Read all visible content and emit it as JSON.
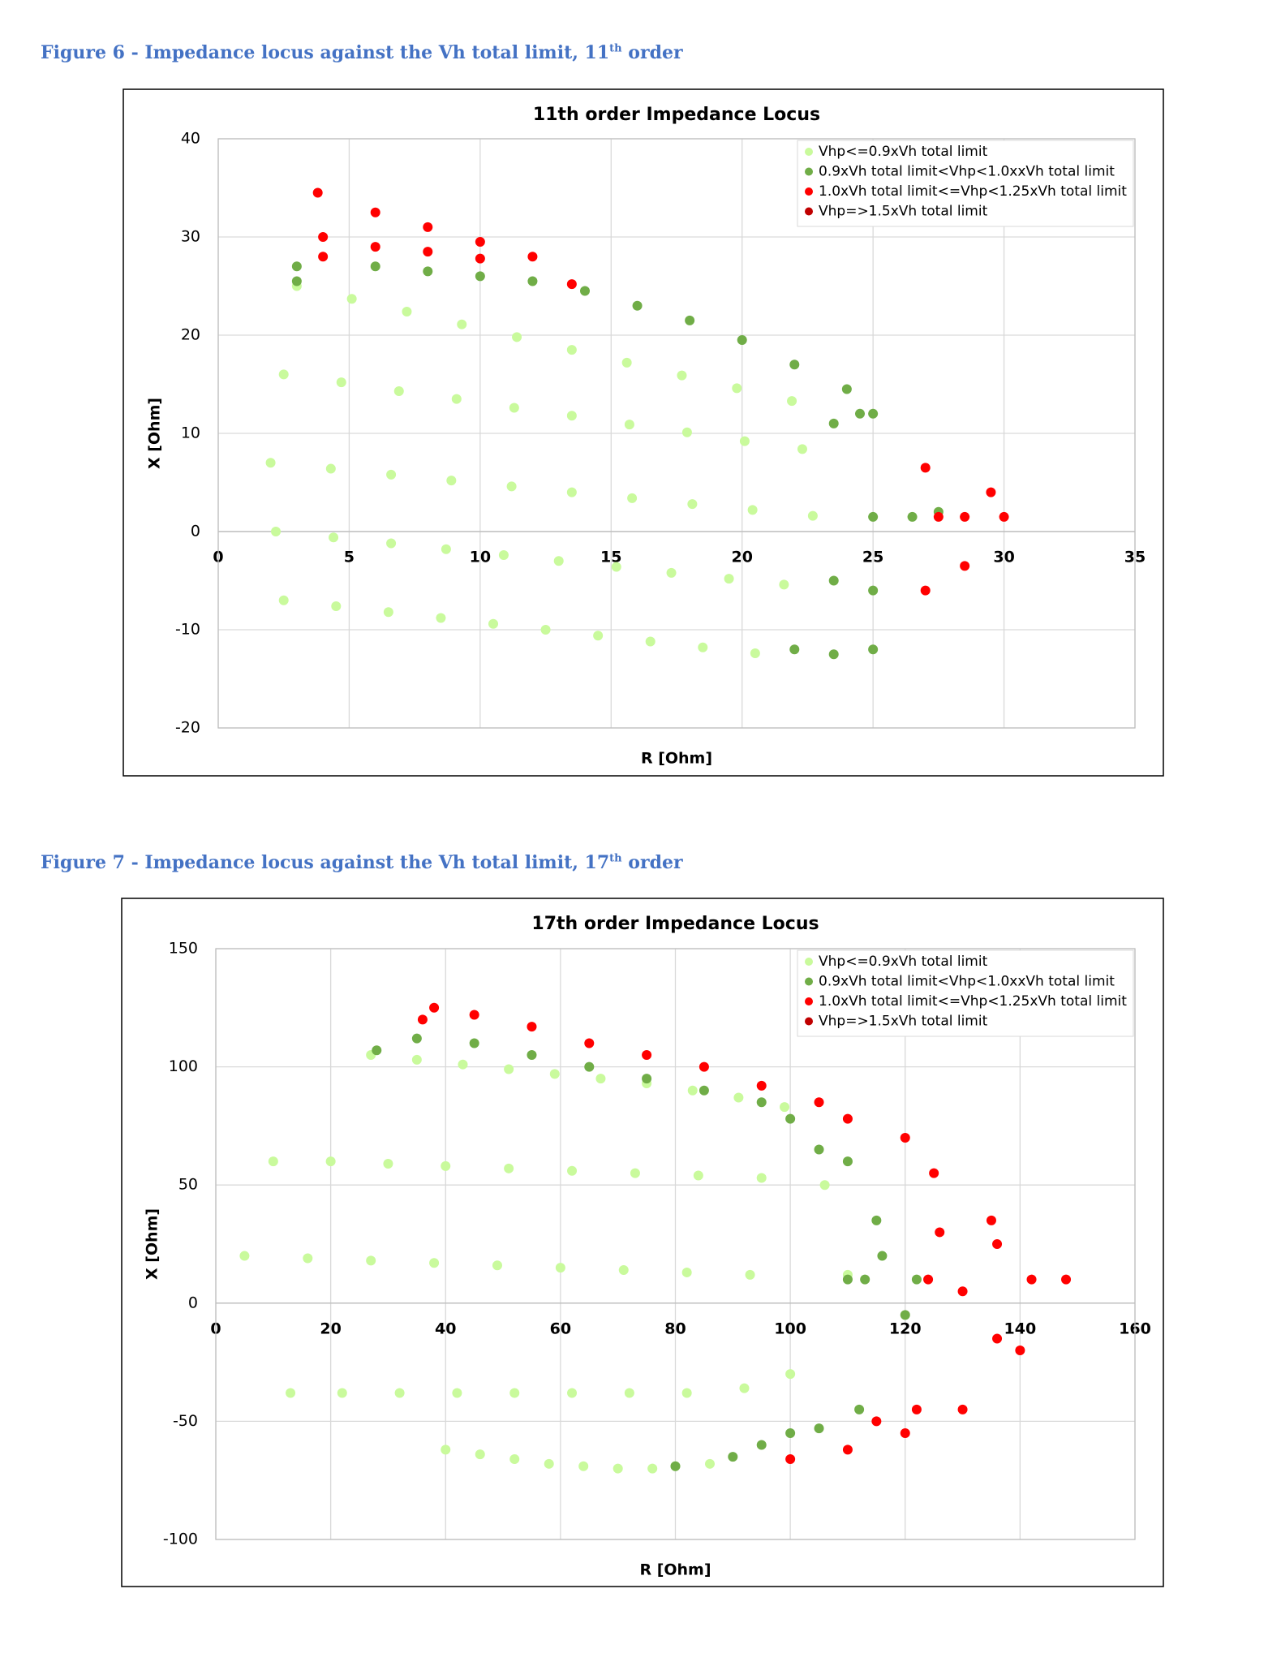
{
  "captions": [
    {
      "text": "Figure 6 - Impedance locus against the Vh total limit, 11",
      "sup": "th",
      "tail": " order"
    },
    {
      "text": "Figure 7 - Impedance locus against the Vh total limit, 17",
      "sup": "th",
      "tail": " order"
    }
  ],
  "chart_data": [
    {
      "type": "scatter",
      "title": "11th order Impedance Locus",
      "xlabel": "R [Ohm]",
      "ylabel": "X [Ohm]",
      "xlim": [
        0,
        35
      ],
      "xticks": [
        0,
        5,
        10,
        15,
        20,
        25,
        30,
        35
      ],
      "ylim": [
        -20,
        40
      ],
      "yticks": [
        -20,
        -10,
        0,
        10,
        20,
        30,
        40
      ],
      "grid": true,
      "legend": "upper right",
      "series": [
        {
          "name": "Vhp<=0.9xVh total limit",
          "color": "#c9fa9c",
          "x": [
            3,
            2.5,
            2,
            2.2,
            2.5,
            5.1,
            4.7,
            4.3,
            4.4,
            4.5,
            7.2,
            6.9,
            6.6,
            6.6,
            6.5,
            9.3,
            9.1,
            8.9,
            8.7,
            8.5,
            11.4,
            11.3,
            11.2,
            10.9,
            10.5,
            13.5,
            13.5,
            13.5,
            13,
            12.5,
            15.6,
            15.7,
            15.8,
            15.2,
            14.5,
            17.7,
            17.9,
            18.1,
            17.3,
            16.5,
            19.8,
            20.1,
            20.4,
            19.5,
            18.5,
            21.9,
            22.3,
            22.7,
            21.6,
            20.5
          ],
          "y": [
            25,
            16,
            7,
            0,
            -7,
            23.7,
            15.2,
            6.4,
            -0.6,
            -7.6,
            22.4,
            14.3,
            5.8,
            -1.2,
            -8.2,
            21.1,
            13.5,
            5.2,
            -1.8,
            -8.8,
            19.8,
            12.6,
            4.6,
            -2.4,
            -9.4,
            18.5,
            11.8,
            4,
            -3,
            -10,
            17.2,
            10.9,
            3.4,
            -3.6,
            -10.6,
            15.9,
            10.1,
            2.8,
            -4.2,
            -11.2,
            14.6,
            9.2,
            2.2,
            -4.8,
            -11.8,
            13.3,
            8.4,
            1.6,
            -5.4,
            -12.4
          ]
        },
        {
          "name": "0.9xVh total limit<Vhp<1.0xxVh total limit",
          "color": "#70ad47",
          "x": [
            3,
            3,
            6,
            8,
            10,
            12,
            14,
            16,
            18,
            20,
            22,
            24,
            25,
            23.5,
            25,
            23.5,
            22,
            24.5,
            26.5,
            25,
            23.5,
            27.5,
            25
          ],
          "y": [
            27,
            25.5,
            27,
            26.5,
            26,
            25.5,
            24.5,
            23,
            21.5,
            19.5,
            17,
            14.5,
            12,
            11,
            1.5,
            -5,
            -12,
            12,
            1.5,
            -6,
            -12.5,
            2,
            -12
          ]
        },
        {
          "name": "1.0xVh total limit<=Vhp<1.25xVh total limit",
          "color": "#ff0000",
          "x": [
            3.8,
            4,
            4,
            6,
            6,
            8,
            8,
            10,
            10,
            12,
            13.5,
            27,
            28.5,
            27,
            29.5,
            30,
            28.5,
            27.5
          ],
          "y": [
            34.5,
            30,
            28,
            32.5,
            29,
            31,
            28.5,
            29.5,
            27.8,
            28,
            25.2,
            6.5,
            1.5,
            -6,
            4,
            1.5,
            -3.5,
            1.5
          ]
        },
        {
          "name": "Vhp=>1.5xVh total limit",
          "color": "#c00000",
          "x": [],
          "y": []
        }
      ]
    },
    {
      "type": "scatter",
      "title": "17th order Impedance Locus",
      "xlabel": "R [Ohm]",
      "ylabel": "X [Ohm]",
      "xlim": [
        0,
        160
      ],
      "xticks": [
        0,
        20,
        40,
        60,
        80,
        100,
        120,
        140,
        160
      ],
      "ylim": [
        -100,
        150
      ],
      "yticks": [
        -100,
        -50,
        0,
        50,
        100,
        150
      ],
      "grid": true,
      "legend": "upper right",
      "series": [
        {
          "name": "Vhp<=0.9xVh total limit",
          "color": "#c9fa9c",
          "x": [
            27,
            10,
            5,
            13,
            40,
            35,
            20,
            16,
            22,
            46,
            43,
            30,
            27,
            32,
            52,
            51,
            40,
            38,
            42,
            58,
            59,
            51,
            49,
            52,
            64,
            67,
            62,
            60,
            62,
            70,
            75,
            73,
            71,
            72,
            76,
            83,
            84,
            82,
            82,
            80,
            91,
            95,
            93,
            92,
            86,
            99,
            106,
            110,
            100
          ],
          "y": [
            105,
            60,
            20,
            -38,
            -62,
            103,
            60,
            19,
            -38,
            -64,
            101,
            59,
            18,
            -38,
            -66,
            99,
            58,
            17,
            -38,
            -68,
            97,
            57,
            16,
            -38,
            -69,
            95,
            56,
            15,
            -38,
            -70,
            93,
            55,
            14,
            -38,
            -70,
            90,
            54,
            13,
            -38,
            -69,
            87,
            53,
            12,
            -36,
            -68,
            83,
            50,
            12,
            -30
          ]
        },
        {
          "name": "0.9xVh total limit<Vhp<1.0xxVh total limit",
          "color": "#70ad47",
          "x": [
            28,
            35,
            45,
            55,
            65,
            75,
            85,
            95,
            100,
            105,
            110,
            115,
            113,
            110,
            116,
            122,
            120,
            112,
            100,
            90,
            80,
            95,
            105
          ],
          "y": [
            107,
            112,
            110,
            105,
            100,
            95,
            90,
            85,
            78,
            65,
            60,
            35,
            10,
            10,
            20,
            10,
            -5,
            -45,
            -55,
            -65,
            -69,
            -60,
            -53
          ]
        },
        {
          "name": "1.0xVh total limit<=Vhp<1.25xVh total limit",
          "color": "#ff0000",
          "x": [
            38,
            36,
            45,
            55,
            65,
            75,
            85,
            95,
            105,
            110,
            120,
            125,
            135,
            148,
            140,
            130,
            120,
            110,
            100,
            126,
            136,
            142,
            136,
            124,
            130,
            122,
            115
          ],
          "y": [
            125,
            120,
            122,
            117,
            110,
            105,
            100,
            92,
            85,
            78,
            70,
            55,
            35,
            10,
            -20,
            -45,
            -55,
            -62,
            -66,
            30,
            25,
            10,
            -15,
            10,
            5,
            -45,
            -50
          ]
        },
        {
          "name": "Vhp=>1.5xVh total limit",
          "color": "#c00000",
          "x": [],
          "y": []
        }
      ]
    }
  ]
}
